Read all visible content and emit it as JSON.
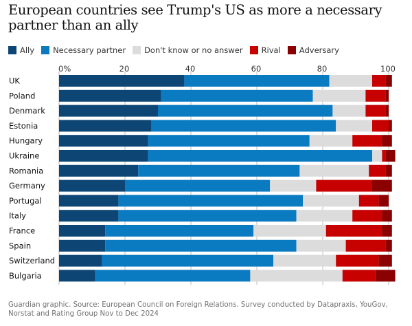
{
  "title": "European countries see Trump's US as more a necessary partner than an ally",
  "source": "Guardian graphic. Source: European Council on Foreign Relations. Survey conducted by Datapraxis, YouGov, Norstat and Rating Group Nov to Dec 2024",
  "colors": {
    "ally": "#0d4574",
    "necessary_partner": "#0a7ac1",
    "dont_know": "#dcdcdc",
    "rival": "#c70000",
    "adversary": "#8b0000"
  },
  "chart_data": {
    "type": "bar",
    "orientation": "horizontal",
    "stacked": true,
    "title": "European countries see Trump's US as more a necessary partner than an ally",
    "xlim": [
      0,
      100
    ],
    "xticks": [
      0,
      20,
      40,
      60,
      80,
      100
    ],
    "xtick_labels": [
      "0%",
      "20",
      "40",
      "60",
      "80",
      "100"
    ],
    "legend_position": "top",
    "categories": [
      "UK",
      "Poland",
      "Denmark",
      "Estonia",
      "Hungary",
      "Ukraine",
      "Romania",
      "Germany",
      "Portugal",
      "Italy",
      "France",
      "Spain",
      "Switzerland",
      "Bulgaria"
    ],
    "series": [
      {
        "name": "Ally",
        "color": "#0d4574",
        "values": [
          38,
          31,
          30,
          28,
          27,
          27,
          24,
          20,
          18,
          18,
          14,
          14,
          13,
          11
        ]
      },
      {
        "name": "Necessary partner",
        "color": "#0a7ac1",
        "values": [
          44,
          46,
          53,
          56,
          49,
          68,
          49,
          44,
          56,
          54,
          45,
          58,
          52,
          47
        ]
      },
      {
        "name": "Don't know or no answer",
        "color": "#dcdcdc",
        "values": [
          13,
          16,
          10,
          11,
          13,
          3,
          21,
          14,
          17,
          17,
          22,
          15,
          19,
          28
        ]
      },
      {
        "name": "Rival",
        "color": "#c70000",
        "values": [
          4,
          6,
          6,
          5,
          9,
          1,
          5,
          17,
          6,
          9,
          17,
          12,
          13,
          10
        ]
      },
      {
        "name": "Adversary",
        "color": "#8b0000",
        "values": [
          2,
          1,
          1,
          1,
          3,
          3,
          2,
          6,
          3,
          3,
          3,
          2,
          4,
          6
        ]
      }
    ]
  }
}
